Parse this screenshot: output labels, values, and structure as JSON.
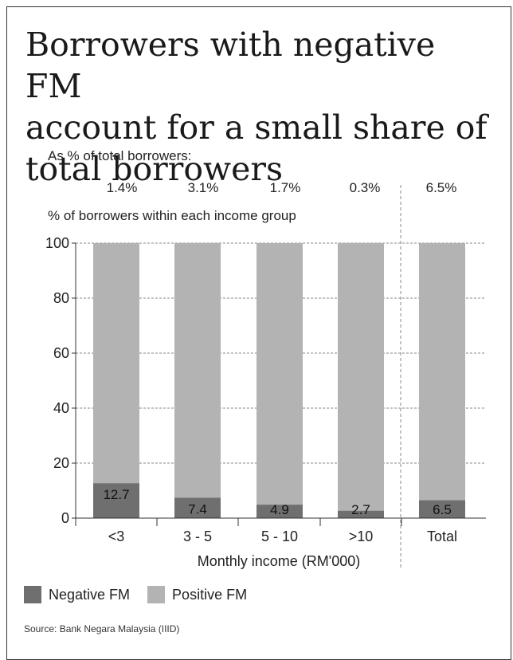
{
  "title_line1": "Borrowers with negative FM",
  "title_line2": "account for a small share of",
  "title_line3": "total borrowers",
  "share_heading": "As % of total borrowers:",
  "share_values": [
    "1.4%",
    "3.1%",
    "1.7%",
    "0.3%",
    "6.5%"
  ],
  "source": "Source: Bank Negara Malaysia (IIID)",
  "colors": {
    "negative": "#6f6f6f",
    "positive": "#b3b3b3"
  },
  "chart_data": {
    "type": "bar",
    "stacked": true,
    "title": "% of borrowers within each income group",
    "xlabel": "Monthly income (RM'000)",
    "ylabel": "",
    "ylim": [
      0,
      100
    ],
    "yticks": [
      0,
      20,
      40,
      60,
      80,
      100
    ],
    "categories": [
      "<3",
      "3 - 5",
      "5 - 10",
      ">10",
      "Total"
    ],
    "series": [
      {
        "name": "Negative FM",
        "values": [
          12.7,
          7.4,
          4.9,
          2.7,
          6.5
        ],
        "labels": [
          "12.7",
          "7.4",
          "4.9",
          "2.7",
          "6.5"
        ]
      },
      {
        "name": "Positive FM",
        "values": [
          87.3,
          92.6,
          95.1,
          97.3,
          93.5
        ]
      }
    ],
    "grid": true,
    "legend": "bottom-left"
  }
}
